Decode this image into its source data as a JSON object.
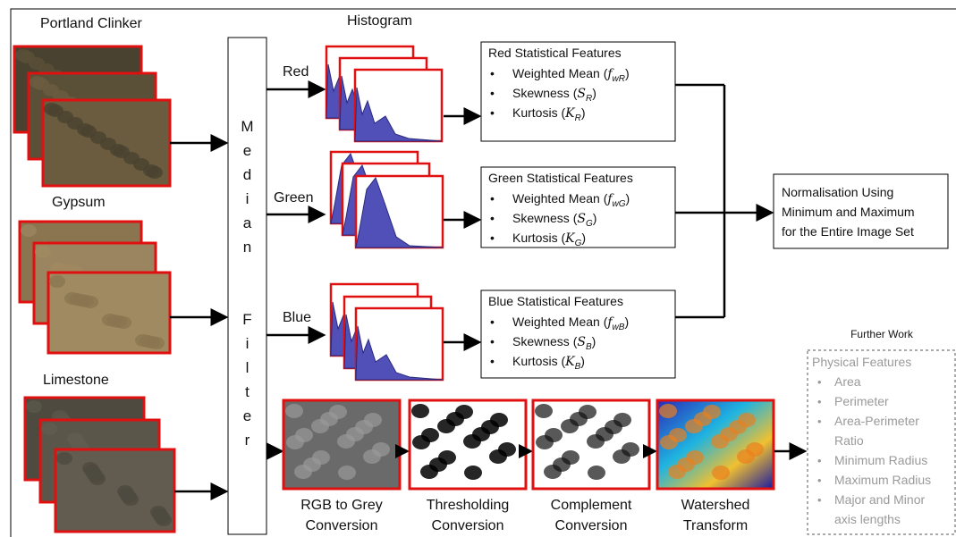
{
  "inputs": [
    {
      "label": "Portland Clinker"
    },
    {
      "label": "Gypsum"
    },
    {
      "label": "Limestone"
    }
  ],
  "histogram_title": "Histogram",
  "median_filter": "Median  Filter",
  "channels": [
    {
      "name": "Red",
      "box_title": "Red Statistical Features",
      "items": [
        {
          "prefix": "Weighted Mean (",
          "symbol": "f",
          "subscript": "wR",
          "suffix": ")"
        },
        {
          "prefix": "Skewness (",
          "symbol": "S",
          "subscript": "R",
          "suffix": ")"
        },
        {
          "prefix": "Kurtosis (",
          "symbol": "K",
          "subscript": "R",
          "suffix": ")"
        }
      ]
    },
    {
      "name": "Green",
      "box_title": "Green Statistical Features",
      "items": [
        {
          "prefix": "Weighted Mean (",
          "symbol": "f",
          "subscript": "wG",
          "suffix": ")"
        },
        {
          "prefix": "Skewness (",
          "symbol": "S",
          "subscript": "G",
          "suffix": ")"
        },
        {
          "prefix": "Kurtosis (",
          "symbol": "K",
          "subscript": "G",
          "suffix": ")"
        }
      ]
    },
    {
      "name": "Blue",
      "box_title": "Blue Statistical Features",
      "items": [
        {
          "prefix": "Weighted Mean (",
          "symbol": "f",
          "subscript": "wB",
          "suffix": ")"
        },
        {
          "prefix": "Skewness (",
          "symbol": "S",
          "subscript": "B",
          "suffix": ")"
        },
        {
          "prefix": "Kurtosis (",
          "symbol": "K",
          "subscript": "B",
          "suffix": ")"
        }
      ]
    }
  ],
  "normalisation": [
    "Normalisation Using",
    "Minimum and Maximum",
    "for the Entire Image Set"
  ],
  "steps": [
    {
      "lines": [
        "RGB to Grey",
        "Conversion"
      ]
    },
    {
      "lines": [
        "Thresholding",
        "Conversion"
      ]
    },
    {
      "lines": [
        "Complement",
        "Conversion"
      ]
    },
    {
      "lines": [
        "Watershed",
        "Transform"
      ]
    }
  ],
  "further_work": {
    "title": "Further Work",
    "heading": "Physical Features",
    "items": [
      [
        "Area"
      ],
      [
        "Perimeter"
      ],
      [
        "Area-Perimeter",
        "Ratio"
      ],
      [
        "Minimum Radius"
      ],
      [
        "Maximum Radius"
      ],
      [
        "Major and Minor",
        "axis lengths"
      ]
    ]
  }
}
